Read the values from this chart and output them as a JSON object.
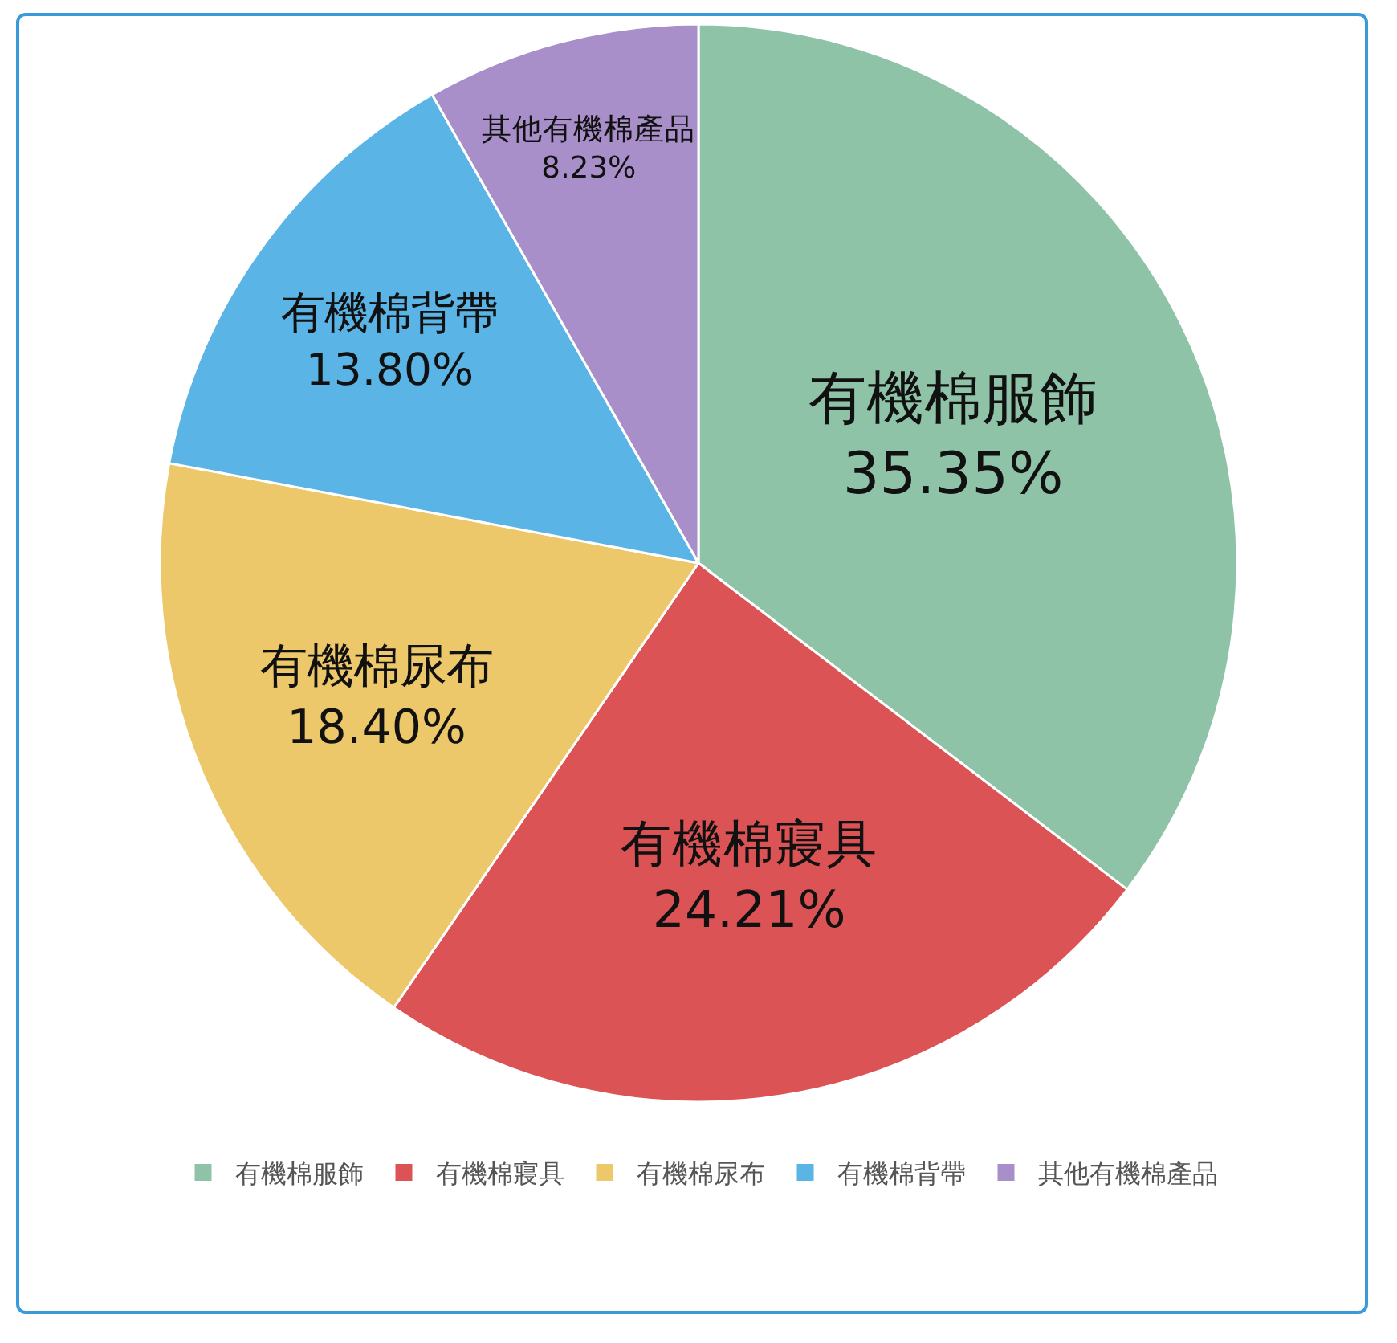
{
  "chart_data": {
    "type": "pie",
    "categories": [
      "有機棉服飾",
      "有機棉寢具",
      "有機棉尿布",
      "有機棉背帶",
      "其他有機棉產品"
    ],
    "values": [
      35.35,
      24.21,
      18.4,
      13.8,
      8.23
    ],
    "value_labels": [
      "35.35%",
      "24.21%",
      "18.40%",
      "13.80%",
      "8.23%"
    ],
    "colors": [
      "#8fc3a8",
      "#dc5356",
      "#edc86b",
      "#5ab4e5",
      "#a98fc9"
    ],
    "legend": "bottom"
  }
}
